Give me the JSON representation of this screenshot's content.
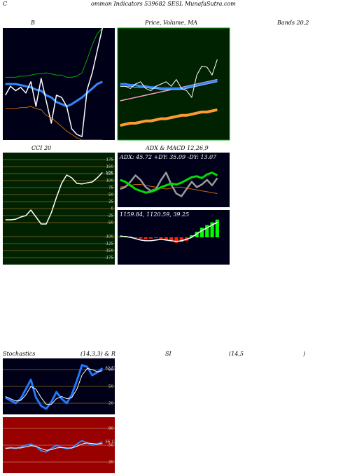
{
  "header": {
    "lead": "C",
    "title": "ommon  Indicators 539682  SESL MunafaSutra.com"
  },
  "captions": [
    "B",
    "Price,  Volume, MA",
    "Bands 20,2",
    "CCI 20",
    "ADX  & MACD 12,26,9",
    "Stochastics",
    "(14,3,3) & R",
    "SI",
    "(14,5",
    ")"
  ],
  "watermark": "MunafaSutra.com",
  "chart_data": [
    {
      "type": "line",
      "background": "#000018",
      "ylim": [
        0,
        100
      ],
      "series": [
        {
          "color": "#00aa00",
          "width": 1,
          "values": [
            56,
            56,
            56,
            57,
            57,
            58,
            59,
            59,
            60,
            59,
            58,
            58,
            56,
            56,
            57,
            60,
            72,
            85,
            95,
            100
          ]
        },
        {
          "color": "#cc6600",
          "width": 1,
          "values": [
            28,
            28,
            28,
            29,
            29,
            30,
            28,
            27,
            22,
            20,
            16,
            12,
            8,
            5,
            2,
            0,
            0,
            0,
            0,
            0
          ]
        },
        {
          "color": "#3388ff",
          "width": 3,
          "values": [
            50,
            50,
            50,
            49,
            48,
            47,
            45,
            44,
            40,
            38,
            34,
            32,
            30,
            32,
            35,
            38,
            42,
            46,
            50,
            52
          ]
        },
        {
          "color": "#ffffff",
          "width": 1.5,
          "values": [
            40,
            48,
            44,
            47,
            42,
            52,
            30,
            55,
            35,
            15,
            40,
            38,
            30,
            10,
            5,
            3,
            45,
            60,
            80,
            100
          ]
        }
      ]
    },
    {
      "type": "line",
      "background": "#002200",
      "border": "#00aa00",
      "ylim": [
        0,
        100
      ],
      "series": [
        {
          "color": "#ff9933",
          "width": 4,
          "values": [
            13,
            14,
            15,
            15,
            16,
            17,
            17,
            18,
            19,
            19,
            20,
            21,
            22,
            22,
            23,
            24,
            25,
            25,
            26,
            27
          ]
        },
        {
          "color": "#ff99cc",
          "width": 1.5,
          "values": [
            35,
            36,
            37,
            38,
            39,
            40,
            41,
            42,
            43,
            44,
            45,
            46,
            47,
            48,
            49,
            50,
            51,
            52,
            53,
            54
          ]
        },
        {
          "color": "#3388ff",
          "width": 3,
          "values": [
            50,
            50,
            49,
            49,
            48,
            48,
            47,
            47,
            46,
            46,
            46,
            46,
            46,
            47,
            48,
            49,
            50,
            51,
            52,
            53
          ]
        },
        {
          "color": "#88bbff",
          "width": 1,
          "values": [
            48,
            48,
            48,
            47,
            47,
            47,
            46,
            46,
            45,
            45,
            45,
            45,
            45,
            46,
            47,
            48,
            49,
            50,
            51,
            52
          ]
        },
        {
          "color": "#ffffff",
          "width": 1,
          "values": [
            48,
            48,
            46,
            50,
            52,
            46,
            44,
            48,
            50,
            52,
            48,
            54,
            46,
            44,
            38,
            58,
            66,
            65,
            58,
            72
          ]
        }
      ]
    },
    {
      "type": "line",
      "background": "#002200",
      "grid": true,
      "grid_color": "#8a6a20",
      "ylim": [
        -200,
        200
      ],
      "yticks": [
        175,
        150,
        125,
        100,
        75,
        50,
        25,
        0,
        -25,
        -50,
        -100,
        -125,
        -150,
        -175
      ],
      "series": [
        {
          "color": "#ffffff",
          "width": 1.5,
          "values": [
            -40,
            -40,
            -38,
            -30,
            -25,
            -5,
            -30,
            -55,
            -55,
            -15,
            40,
            90,
            120,
            110,
            90,
            88,
            92,
            95,
            110,
            129
          ],
          "value_labels": [
            null,
            null,
            null,
            null,
            null,
            null,
            null,
            null,
            null,
            null,
            null,
            null,
            null,
            null,
            null,
            null,
            null,
            null,
            null,
            "129"
          ]
        }
      ]
    },
    {
      "type": "line",
      "background": "#000018",
      "note": "ADX: 45.72  +DY: 35.09 -DY: 13.07",
      "ylim": [
        0,
        60
      ],
      "series": [
        {
          "color": "#cc6600",
          "width": 1,
          "values": [
            22,
            23,
            24,
            25,
            25,
            24,
            23,
            22,
            21,
            20,
            21,
            22,
            22,
            21,
            20,
            19,
            18,
            17,
            16,
            15
          ]
        },
        {
          "color": "#999999",
          "width": 2.5,
          "values": [
            20,
            22,
            28,
            35,
            30,
            22,
            18,
            20,
            30,
            38,
            25,
            15,
            12,
            20,
            28,
            22,
            25,
            30,
            24,
            32
          ]
        },
        {
          "color": "#00dd00",
          "width": 3,
          "values": [
            30,
            28,
            24,
            20,
            18,
            16,
            17,
            19,
            22,
            24,
            26,
            25,
            27,
            30,
            33,
            34,
            32,
            36,
            38,
            35
          ]
        }
      ]
    },
    {
      "type": "line",
      "background": "#000018",
      "note": "1159.84,  1120.59,  39.25",
      "ylim": [
        -40,
        40
      ],
      "series": [
        {
          "style": "bar",
          "color": "#00ff00",
          "values": [
            1,
            2,
            1,
            null,
            null,
            null,
            null,
            null,
            null,
            null,
            null,
            null,
            null,
            null,
            3,
            8,
            14,
            18,
            22,
            26
          ]
        },
        {
          "style": "bar",
          "color": "#ff2200",
          "values": [
            null,
            null,
            null,
            -1,
            -2,
            -3,
            -2,
            -1,
            -2,
            -4,
            -6,
            -8,
            -7,
            -5,
            null,
            null,
            null,
            null,
            null,
            null
          ]
        },
        {
          "color": "#ffffff",
          "width": 1.5,
          "values": [
            2,
            1,
            0,
            -2,
            -4,
            -5,
            -5,
            -4,
            -3,
            -4,
            -5,
            -6,
            -5,
            -3,
            0,
            5,
            10,
            14,
            18,
            22
          ]
        }
      ]
    },
    {
      "type": "line",
      "background": "#000018",
      "grid": true,
      "grid_color": "#8a6a20",
      "ylim": [
        0,
        100
      ],
      "yticks": [
        80,
        50,
        20
      ],
      "series": [
        {
          "color": "#2277ff",
          "width": 3,
          "values": [
            30,
            25,
            20,
            28,
            45,
            62,
            30,
            15,
            10,
            22,
            40,
            28,
            20,
            35,
            60,
            88,
            85,
            70,
            75,
            82.53
          ],
          "value_labels": [
            null,
            null,
            null,
            null,
            null,
            null,
            null,
            null,
            null,
            null,
            null,
            null,
            null,
            null,
            null,
            null,
            null,
            null,
            null,
            "82.53"
          ]
        },
        {
          "color": "#ffffff",
          "width": 1,
          "values": [
            32,
            28,
            24,
            25,
            35,
            50,
            45,
            30,
            18,
            18,
            28,
            32,
            28,
            30,
            45,
            70,
            82,
            80,
            76,
            78
          ]
        }
      ]
    },
    {
      "type": "line",
      "background": "#990000",
      "grid": true,
      "grid_color": "#cc7766",
      "ylim": [
        0,
        100
      ],
      "yticks": [
        80,
        50,
        20
      ],
      "series": [
        {
          "color": "#3388ff",
          "width": 2,
          "values": [
            45,
            46,
            44,
            47,
            50,
            52,
            48,
            40,
            38,
            44,
            50,
            46,
            44,
            45,
            52,
            58,
            54,
            50,
            52,
            56.12
          ],
          "value_labels": [
            null,
            null,
            null,
            null,
            null,
            null,
            null,
            null,
            null,
            null,
            null,
            null,
            null,
            null,
            null,
            null,
            null,
            null,
            null,
            "56.12"
          ]
        },
        {
          "color": "#ffffff",
          "width": 1,
          "values": [
            44,
            45,
            45,
            45,
            47,
            49,
            48,
            44,
            41,
            42,
            45,
            46,
            45,
            45,
            48,
            52,
            54,
            53,
            52,
            53
          ]
        }
      ]
    }
  ]
}
